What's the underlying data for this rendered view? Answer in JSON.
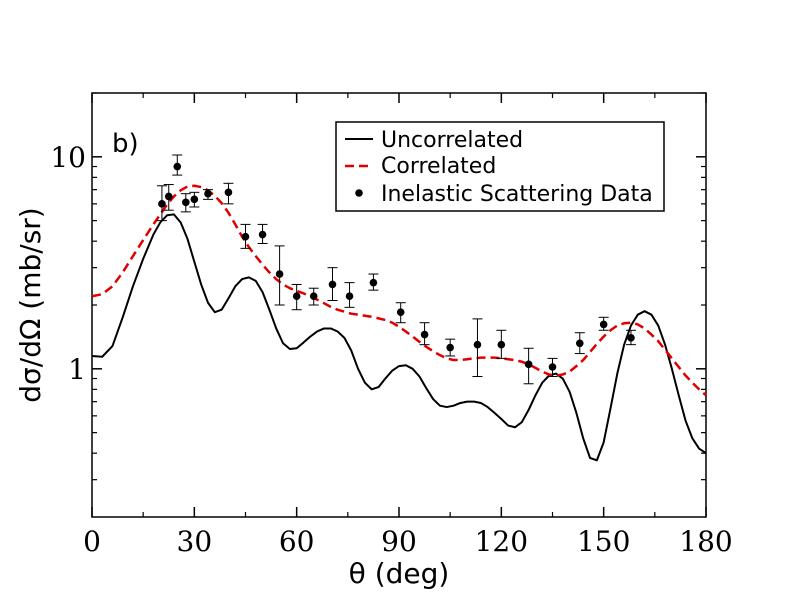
{
  "chart_data": {
    "type": "line",
    "panel_label": "b)",
    "xlabel": "θ (deg)",
    "ylabel": "dσ/dΩ (mb/sr)",
    "xlim": [
      0,
      180
    ],
    "ylim": [
      0.2,
      20
    ],
    "yscale": "log",
    "x_ticks": [
      0,
      30,
      60,
      90,
      120,
      150,
      180
    ],
    "y_ticks": [
      1,
      10
    ],
    "x_tick_labels": [
      "0",
      "30",
      "60",
      "90",
      "120",
      "150",
      "180"
    ],
    "y_tick_labels": [
      "1",
      "10"
    ],
    "legend_position": "top-right",
    "series": [
      {
        "name": "Uncorrelated",
        "style": "solid",
        "color": "#000000",
        "x": [
          0,
          3,
          6,
          9,
          12,
          15,
          18,
          20,
          22,
          24,
          26,
          28,
          30,
          32,
          34,
          36,
          38,
          40,
          42,
          44,
          46,
          48,
          50,
          52,
          54,
          56,
          58,
          60,
          62,
          64,
          66,
          68,
          70,
          72,
          74,
          76,
          78,
          80,
          82,
          84,
          86,
          88,
          90,
          92,
          94,
          96,
          98,
          100,
          102,
          104,
          106,
          108,
          110,
          112,
          114,
          116,
          118,
          120,
          122,
          124,
          126,
          128,
          130,
          132,
          134,
          136,
          138,
          140,
          142,
          144,
          146,
          148,
          150,
          152,
          154,
          156,
          158,
          160,
          162,
          164,
          166,
          168,
          170,
          172,
          174,
          176,
          178,
          180
        ],
        "y": [
          1.15,
          1.14,
          1.28,
          1.75,
          2.45,
          3.3,
          4.3,
          4.9,
          5.3,
          5.35,
          4.9,
          4.1,
          3.2,
          2.5,
          2.05,
          1.85,
          1.9,
          2.15,
          2.45,
          2.65,
          2.7,
          2.6,
          2.3,
          1.9,
          1.55,
          1.32,
          1.24,
          1.25,
          1.33,
          1.42,
          1.5,
          1.55,
          1.55,
          1.5,
          1.4,
          1.22,
          1.0,
          0.86,
          0.8,
          0.82,
          0.9,
          0.98,
          1.03,
          1.04,
          1.0,
          0.92,
          0.81,
          0.72,
          0.67,
          0.66,
          0.67,
          0.69,
          0.7,
          0.7,
          0.69,
          0.66,
          0.62,
          0.58,
          0.54,
          0.53,
          0.56,
          0.64,
          0.75,
          0.86,
          0.93,
          0.95,
          0.9,
          0.78,
          0.62,
          0.47,
          0.38,
          0.37,
          0.45,
          0.65,
          0.95,
          1.3,
          1.6,
          1.8,
          1.87,
          1.8,
          1.6,
          1.3,
          1.0,
          0.75,
          0.57,
          0.47,
          0.42,
          0.4
        ]
      },
      {
        "name": "Correlated",
        "style": "dashed",
        "color": "#e00000",
        "x": [
          0,
          3,
          6,
          9,
          12,
          15,
          18,
          20,
          22,
          24,
          26,
          28,
          30,
          32,
          34,
          36,
          38,
          40,
          42,
          44,
          46,
          48,
          50,
          52,
          54,
          56,
          58,
          60,
          62,
          64,
          66,
          68,
          70,
          72,
          74,
          76,
          78,
          80,
          82,
          84,
          86,
          88,
          90,
          92,
          94,
          96,
          98,
          100,
          102,
          104,
          106,
          108,
          110,
          112,
          114,
          116,
          118,
          120,
          122,
          124,
          126,
          128,
          130,
          132,
          134,
          136,
          138,
          140,
          142,
          144,
          146,
          148,
          150,
          152,
          154,
          156,
          158,
          160,
          162,
          164,
          166,
          168,
          170,
          172,
          174,
          176,
          178,
          180
        ],
        "y": [
          2.2,
          2.25,
          2.45,
          2.85,
          3.4,
          4.05,
          4.8,
          5.35,
          5.95,
          6.5,
          6.95,
          7.25,
          7.3,
          7.2,
          6.95,
          6.55,
          6.05,
          5.45,
          4.8,
          4.2,
          3.75,
          3.4,
          3.1,
          2.85,
          2.65,
          2.5,
          2.4,
          2.33,
          2.27,
          2.2,
          2.12,
          2.04,
          1.96,
          1.9,
          1.86,
          1.82,
          1.8,
          1.78,
          1.76,
          1.73,
          1.7,
          1.65,
          1.58,
          1.5,
          1.42,
          1.34,
          1.27,
          1.21,
          1.16,
          1.12,
          1.1,
          1.1,
          1.11,
          1.12,
          1.13,
          1.13,
          1.13,
          1.12,
          1.11,
          1.1,
          1.08,
          1.05,
          1.01,
          0.97,
          0.94,
          0.93,
          0.94,
          0.97,
          1.03,
          1.1,
          1.2,
          1.31,
          1.42,
          1.52,
          1.6,
          1.64,
          1.65,
          1.62,
          1.55,
          1.45,
          1.35,
          1.23,
          1.12,
          1.02,
          0.93,
          0.86,
          0.8,
          0.75
        ]
      },
      {
        "name": "Inelastic Scattering Data",
        "style": "points",
        "color": "#000000",
        "x": [
          20.5,
          22.5,
          25,
          27.5,
          30,
          34,
          40,
          45,
          50,
          55,
          60,
          65,
          70.5,
          75.5,
          82.5,
          90.5,
          97.5,
          105,
          113,
          120,
          128,
          135,
          143,
          150,
          158
        ],
        "y": [
          6.0,
          6.5,
          9.0,
          6.1,
          6.3,
          6.7,
          6.8,
          4.2,
          4.3,
          2.8,
          2.2,
          2.2,
          2.5,
          2.2,
          2.55,
          1.85,
          1.45,
          1.26,
          1.3,
          1.3,
          1.05,
          1.02,
          1.32,
          1.62,
          1.4
        ],
        "err_low": [
          5.0,
          5.6,
          8.2,
          5.5,
          5.8,
          6.3,
          6.0,
          3.7,
          3.9,
          2.0,
          1.9,
          2.0,
          2.1,
          1.95,
          2.35,
          1.65,
          1.3,
          1.15,
          0.92,
          1.12,
          0.85,
          0.92,
          1.18,
          1.52,
          1.3
        ],
        "err_high": [
          7.3,
          7.4,
          10.2,
          6.7,
          6.8,
          7.0,
          7.5,
          4.8,
          4.8,
          3.8,
          2.5,
          2.4,
          3.0,
          2.55,
          2.8,
          2.05,
          1.65,
          1.38,
          1.72,
          1.52,
          1.25,
          1.12,
          1.48,
          1.75,
          1.52
        ]
      }
    ]
  }
}
